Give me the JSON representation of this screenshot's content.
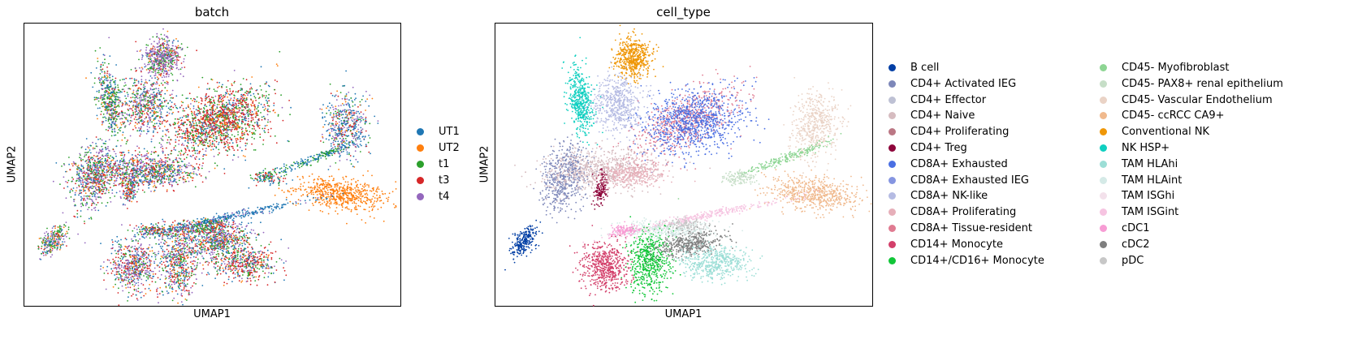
{
  "chart_data": [
    {
      "type": "scatter",
      "title": "batch",
      "xlabel": "UMAP1",
      "ylabel": "UMAP2",
      "xticks": [],
      "yticks": [],
      "grid": false,
      "legend_placement": "right",
      "series": [
        {
          "name": "UT1",
          "color": "#1f77b4"
        },
        {
          "name": "UT2",
          "color": "#ff7f0e"
        },
        {
          "name": "t1",
          "color": "#2ca02c"
        },
        {
          "name": "t3",
          "color": "#d62728"
        },
        {
          "name": "t4",
          "color": "#9467bd"
        }
      ]
    },
    {
      "type": "scatter",
      "title": "cell_type",
      "xlabel": "UMAP1",
      "ylabel": "UMAP2",
      "xticks": [],
      "yticks": [],
      "grid": false,
      "legend_placement": "right",
      "series": [
        {
          "name": "B cell",
          "color": "#023fa5"
        },
        {
          "name": "CD4+ Activated IEG",
          "color": "#7d87b9"
        },
        {
          "name": "CD4+ Effector",
          "color": "#bec1d4"
        },
        {
          "name": "CD4+ Naive",
          "color": "#d6bcc0"
        },
        {
          "name": "CD4+ Proliferating",
          "color": "#bb7784"
        },
        {
          "name": "CD4+ Treg",
          "color": "#8e063b"
        },
        {
          "name": "CD8A+ Exhausted",
          "color": "#4a6fe3"
        },
        {
          "name": "CD8A+ Exhausted IEG",
          "color": "#8595e1"
        },
        {
          "name": "CD8A+ NK-like",
          "color": "#b5bbe3"
        },
        {
          "name": "CD8A+ Proliferating",
          "color": "#e6afb9"
        },
        {
          "name": "CD8A+ Tissue-resident",
          "color": "#e07b91"
        },
        {
          "name": "CD14+ Monocyte",
          "color": "#d33f6a"
        },
        {
          "name": "CD14+/CD16+ Monocyte",
          "color": "#11c638"
        },
        {
          "name": "CD45- Myofibroblast",
          "color": "#8dd593"
        },
        {
          "name": "CD45- PAX8+ renal epithelium",
          "color": "#c6dec7"
        },
        {
          "name": "CD45- Vascular Endothelium",
          "color": "#ead3c6"
        },
        {
          "name": "CD45- ccRCC CA9+",
          "color": "#f0b98d"
        },
        {
          "name": "Conventional NK",
          "color": "#ef9708"
        },
        {
          "name": "NK HSP+",
          "color": "#0fcfc0"
        },
        {
          "name": "TAM HLAhi",
          "color": "#9cded6"
        },
        {
          "name": "TAM HLAint",
          "color": "#d5eae7"
        },
        {
          "name": "TAM ISGhi",
          "color": "#f3e1eb"
        },
        {
          "name": "TAM ISGint",
          "color": "#f6c4e1"
        },
        {
          "name": "cDC1",
          "color": "#f79cd4"
        },
        {
          "name": "cDC2",
          "color": "#7f7f7f"
        },
        {
          "name": "pDC",
          "color": "#c7c7c7"
        }
      ]
    }
  ]
}
